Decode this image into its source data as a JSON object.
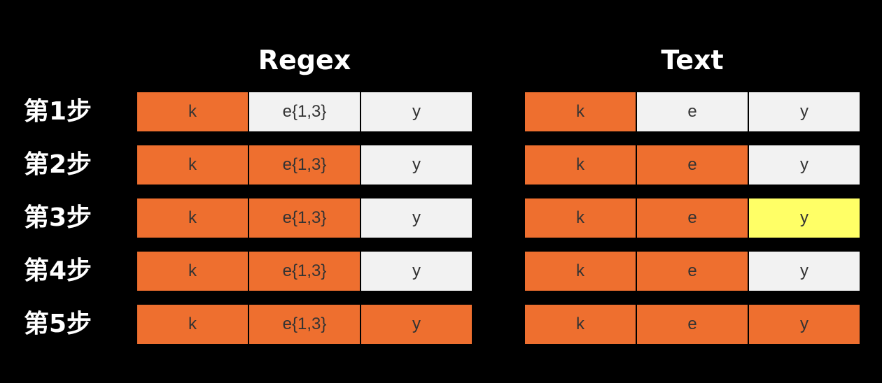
{
  "headings": {
    "regex": "Regex",
    "text": "Text"
  },
  "colors": {
    "matched": "#ee6f2f",
    "unmatched": "#f2f2f2",
    "current": "#ffff66"
  },
  "steps": [
    {
      "label": "第1步",
      "regex": [
        {
          "text": "k",
          "state": "matched"
        },
        {
          "text": "e{1,3}",
          "state": "unmatched"
        },
        {
          "text": "y",
          "state": "unmatched"
        }
      ],
      "text": [
        {
          "text": "k",
          "state": "matched"
        },
        {
          "text": "e",
          "state": "unmatched"
        },
        {
          "text": "y",
          "state": "unmatched"
        }
      ]
    },
    {
      "label": "第2步",
      "regex": [
        {
          "text": "k",
          "state": "matched"
        },
        {
          "text": "e{1,3}",
          "state": "matched"
        },
        {
          "text": "y",
          "state": "unmatched"
        }
      ],
      "text": [
        {
          "text": "k",
          "state": "matched"
        },
        {
          "text": "e",
          "state": "matched"
        },
        {
          "text": "y",
          "state": "unmatched"
        }
      ]
    },
    {
      "label": "第3步",
      "regex": [
        {
          "text": "k",
          "state": "matched"
        },
        {
          "text": "e{1,3}",
          "state": "matched"
        },
        {
          "text": "y",
          "state": "unmatched"
        }
      ],
      "text": [
        {
          "text": "k",
          "state": "matched"
        },
        {
          "text": "e",
          "state": "matched"
        },
        {
          "text": "y",
          "state": "current"
        }
      ]
    },
    {
      "label": "第4步",
      "regex": [
        {
          "text": "k",
          "state": "matched"
        },
        {
          "text": "e{1,3}",
          "state": "matched"
        },
        {
          "text": "y",
          "state": "unmatched"
        }
      ],
      "text": [
        {
          "text": "k",
          "state": "matched"
        },
        {
          "text": "e",
          "state": "matched"
        },
        {
          "text": "y",
          "state": "unmatched"
        }
      ]
    },
    {
      "label": "第5步",
      "regex": [
        {
          "text": "k",
          "state": "matched"
        },
        {
          "text": "e{1,3}",
          "state": "matched"
        },
        {
          "text": "y",
          "state": "matched"
        }
      ],
      "text": [
        {
          "text": "k",
          "state": "matched"
        },
        {
          "text": "e",
          "state": "matched"
        },
        {
          "text": "y",
          "state": "matched"
        }
      ]
    }
  ]
}
